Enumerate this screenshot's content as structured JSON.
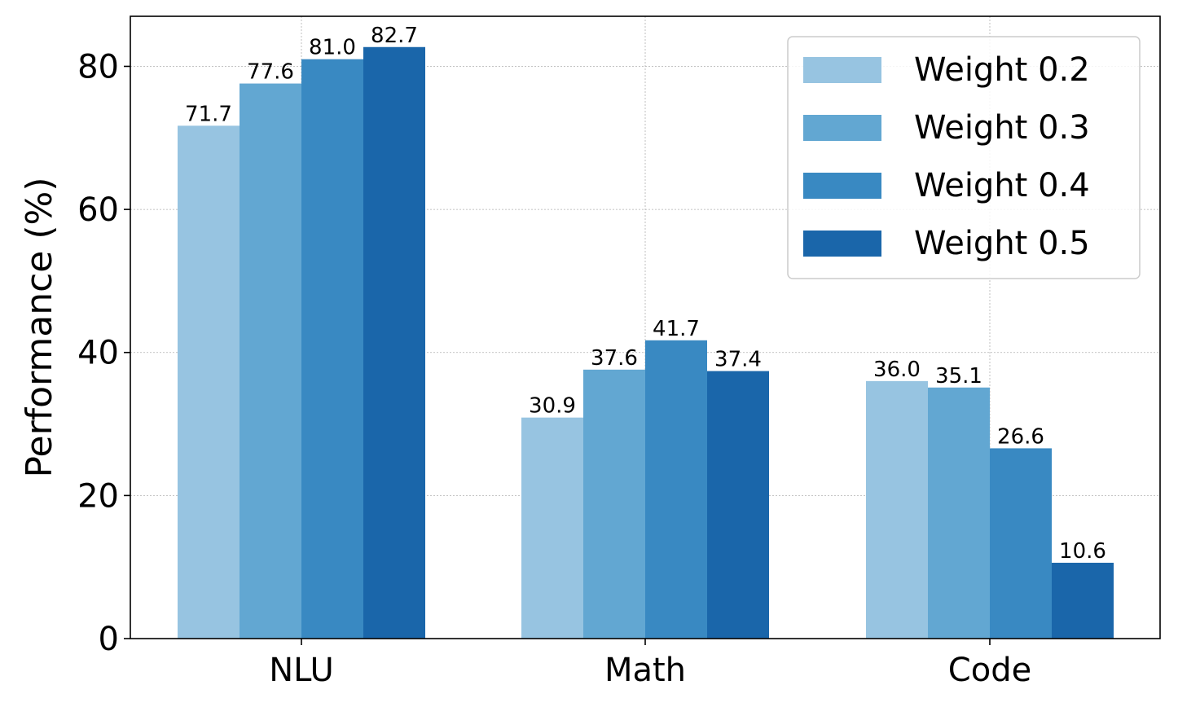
{
  "chart_data": {
    "type": "bar",
    "categories": [
      "NLU",
      "Math",
      "Code"
    ],
    "series": [
      {
        "name": "Weight 0.2",
        "values": [
          71.7,
          30.9,
          36.0
        ],
        "color": "#97c4e1",
        "labels": [
          "71.7",
          "30.9",
          "36.0"
        ]
      },
      {
        "name": "Weight 0.3",
        "values": [
          77.6,
          37.6,
          35.1
        ],
        "color": "#62a7d2",
        "labels": [
          "77.6",
          "37.6",
          "35.1"
        ]
      },
      {
        "name": "Weight 0.4",
        "values": [
          81.0,
          41.7,
          26.6
        ],
        "color": "#3989c2",
        "labels": [
          "81.0",
          "41.7",
          "26.6"
        ]
      },
      {
        "name": "Weight 0.5",
        "values": [
          82.7,
          37.4,
          10.6
        ],
        "color": "#1a66aa",
        "labels": [
          "82.7",
          "37.4",
          "10.6"
        ]
      }
    ],
    "title": "",
    "xlabel": "",
    "ylabel": "Performance (%)",
    "ylim": [
      0,
      87
    ],
    "yticks": [
      0,
      20,
      40,
      60,
      80
    ],
    "grid": true,
    "legend_position": "top-right"
  }
}
